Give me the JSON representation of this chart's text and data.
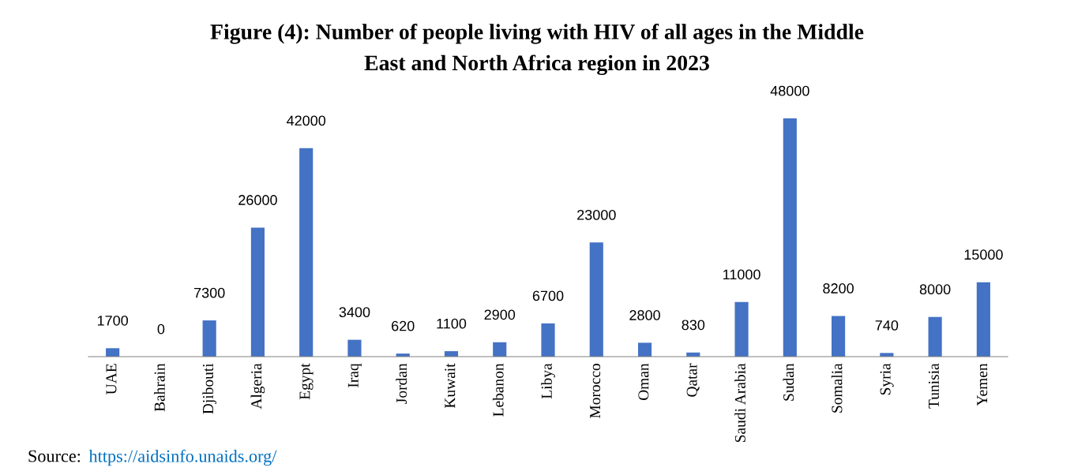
{
  "chart_data": {
    "type": "bar",
    "title": "Figure (4): Number of people living with HIV of all ages in the Middle\nEast and North Africa region in 2023",
    "categories": [
      "UAE",
      "Bahrain",
      "Djibouti",
      "Algeria",
      "Egypt",
      "Iraq",
      "Jordan",
      "Kuwait",
      "Lebanon",
      "Libya",
      "Morocco",
      "Oman",
      "Qatar",
      "Saudi Arabia",
      "Sudan",
      "Somalia",
      "Syria",
      "Tunisia",
      "Yemen"
    ],
    "values": [
      1700,
      0,
      7300,
      26000,
      42000,
      3400,
      620,
      1100,
      2900,
      6700,
      23000,
      2800,
      830,
      11000,
      48000,
      8200,
      740,
      8000,
      15000
    ],
    "color": "#4472c4",
    "data_labels": true,
    "tick_labels": "x",
    "grid": false,
    "legend": false,
    "annotations": [
      "Source: ",
      "https://aidsinfo.unaids.org/"
    ]
  }
}
